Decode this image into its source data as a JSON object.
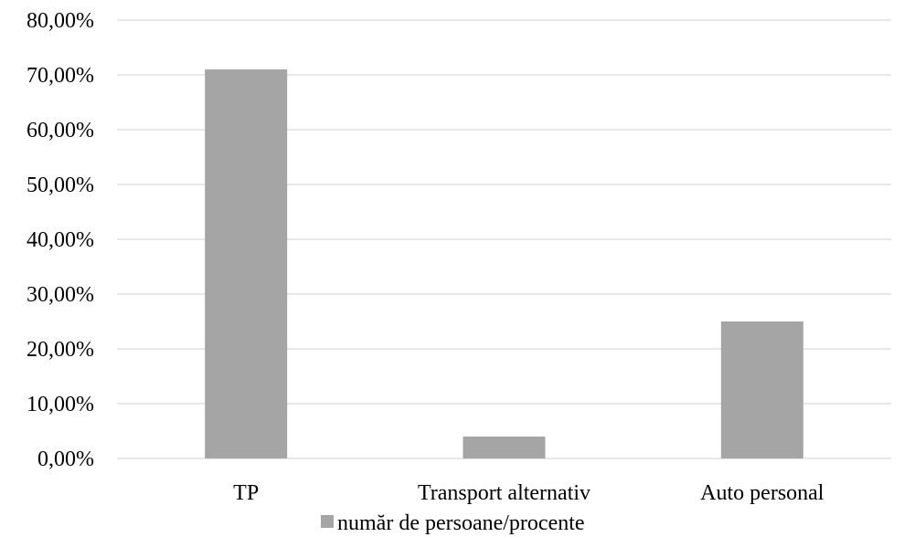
{
  "chart_data": {
    "type": "bar",
    "categories": [
      "TP",
      "Transport alternativ",
      "Auto personal"
    ],
    "series": [
      {
        "name": "număr de persoane/procente",
        "values": [
          71,
          4,
          25
        ]
      }
    ],
    "y_ticks": [
      "0,00%",
      "10,00%",
      "20,00%",
      "30,00%",
      "40,00%",
      "50,00%",
      "60,00%",
      "70,00%",
      "80,00%"
    ],
    "ylim": [
      0,
      80
    ],
    "y_tick_step": 10,
    "grid": true,
    "legend_position": "bottom",
    "bar_color": "#a5a5a5",
    "grid_color": "#d9d9d9"
  }
}
